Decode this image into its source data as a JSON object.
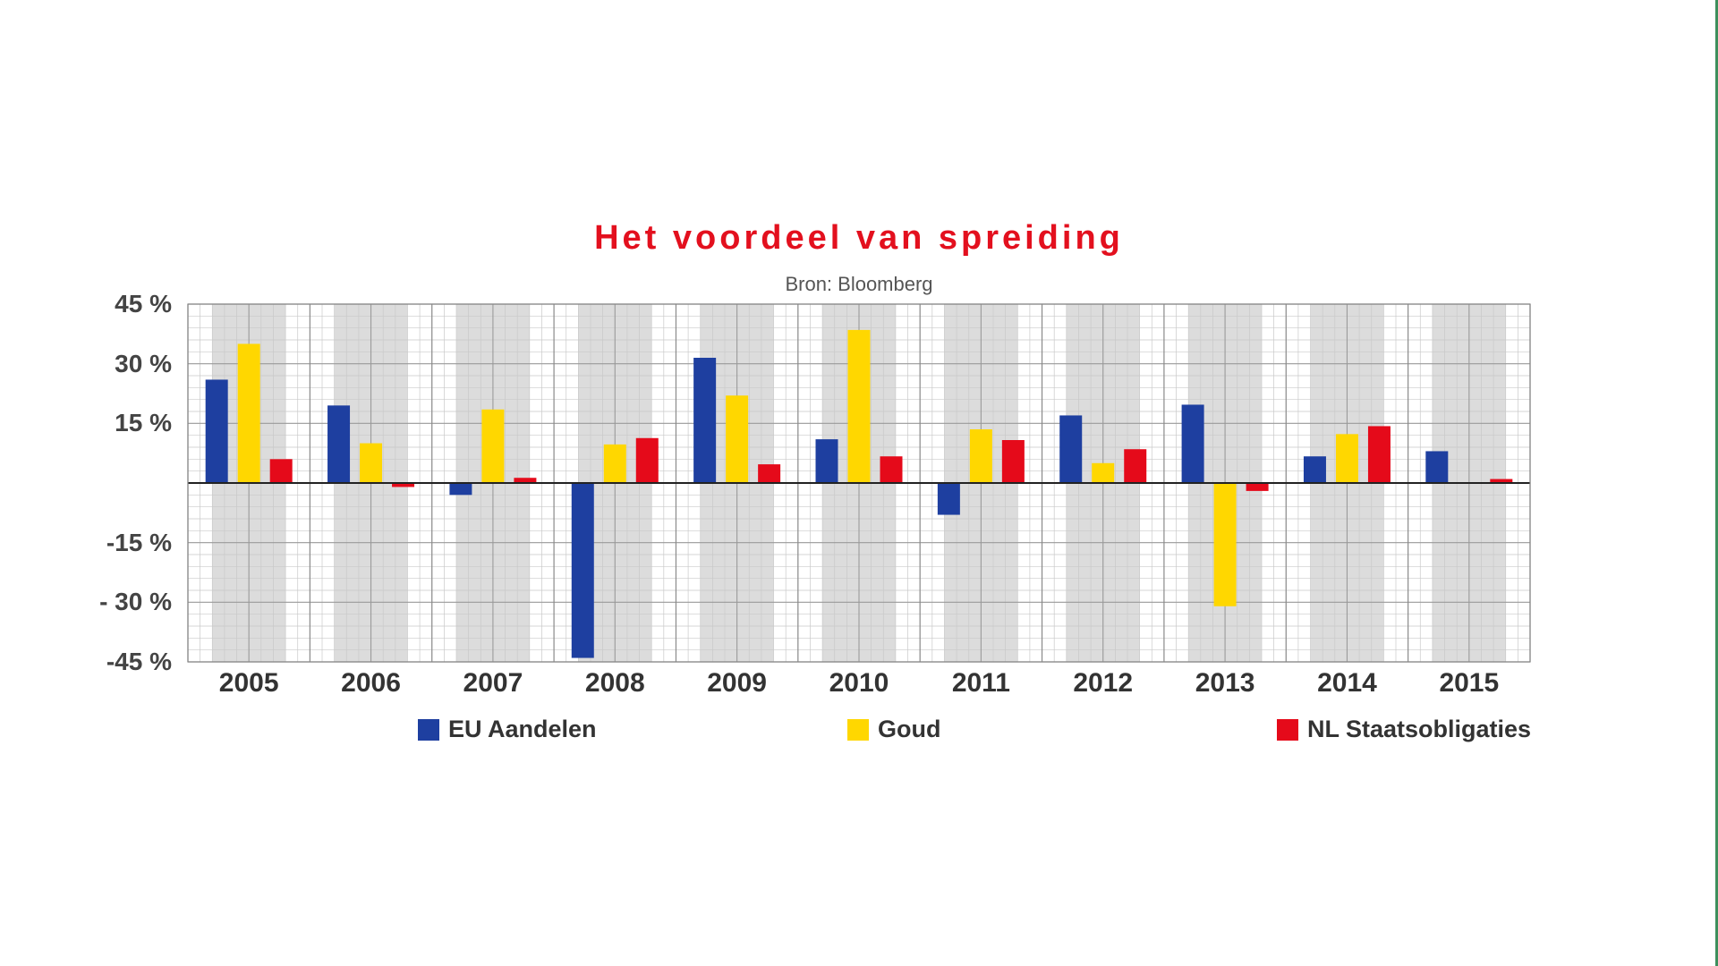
{
  "chart_data": {
    "type": "bar",
    "title": "Het voordeel van spreiding",
    "subtitle": "Bron: Bloomberg",
    "xlabel": "",
    "ylabel": "",
    "ylim": [
      -45,
      45
    ],
    "yticks": [
      45,
      30,
      15,
      -15,
      -30,
      -45
    ],
    "ytick_labels": [
      "45 %",
      "30 %",
      "15 %",
      "-15 %",
      "- 30 %",
      "-45 %"
    ],
    "categories": [
      "2005",
      "2006",
      "2007",
      "2008",
      "2009",
      "2010",
      "2011",
      "2012",
      "2013",
      "2014",
      "2015"
    ],
    "series": [
      {
        "name": "EU Aandelen",
        "color": "#1e3fa0",
        "values": [
          26,
          19.5,
          -3,
          -44,
          31.5,
          11,
          -8,
          17,
          19.7,
          6.7,
          8
        ]
      },
      {
        "name": "Goud",
        "color": "#ffd700",
        "values": [
          35,
          10,
          18.5,
          9.7,
          22,
          38.5,
          13.5,
          5,
          -31,
          12.3,
          0
        ]
      },
      {
        "name": "NL Staatsobligaties",
        "color": "#e50a1a",
        "values": [
          6,
          -1,
          1.3,
          11.3,
          4.7,
          6.7,
          10.8,
          8.5,
          -2,
          14.3,
          1
        ]
      }
    ],
    "grid": true,
    "legend": "bottom"
  }
}
